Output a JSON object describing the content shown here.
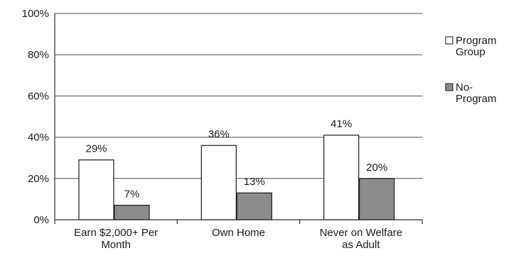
{
  "chart_data": {
    "type": "bar",
    "categories": [
      [
        "Earn $2,000+ Per",
        "Month"
      ],
      [
        "Own Home"
      ],
      [
        "Never on Welfare",
        "as Adult"
      ]
    ],
    "series": [
      {
        "name": [
          "Program",
          "Group"
        ],
        "values": [
          29,
          36,
          41
        ],
        "labels": [
          "29%",
          "36%",
          "41%"
        ],
        "color": "#ffffff"
      },
      {
        "name": [
          "No-",
          "Program"
        ],
        "values": [
          7,
          13,
          20
        ],
        "labels": [
          "7%",
          "13%",
          "20%"
        ],
        "color": "#8c8c8c"
      }
    ],
    "y_ticks": [
      {
        "value": 0,
        "label": "0%"
      },
      {
        "value": 20,
        "label": "20%"
      },
      {
        "value": 40,
        "label": "40%"
      },
      {
        "value": 60,
        "label": "60%"
      },
      {
        "value": 80,
        "label": "80%"
      },
      {
        "value": 100,
        "label": "100%"
      }
    ],
    "ylim": [
      0,
      100
    ],
    "grid": true,
    "legend": "right",
    "title": "",
    "xlabel": "",
    "ylabel": ""
  }
}
